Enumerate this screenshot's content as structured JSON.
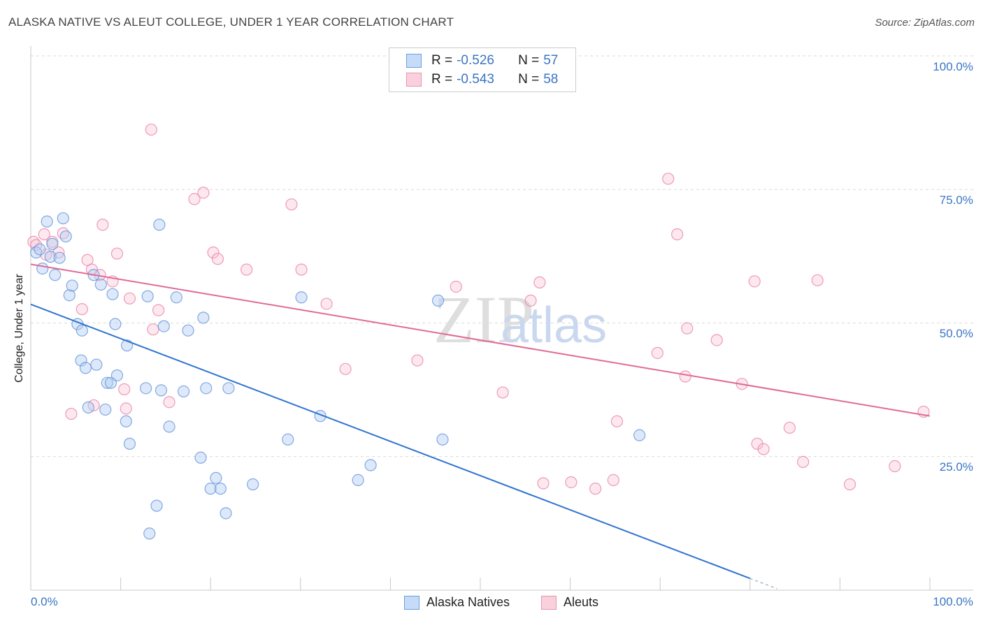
{
  "header": {
    "title": "ALASKA NATIVE VS ALEUT COLLEGE, UNDER 1 YEAR CORRELATION CHART",
    "source": "Source: ZipAtlas.com"
  },
  "watermark": {
    "zip": "ZIP",
    "atlas": "atlas"
  },
  "legend": {
    "rows": [
      {
        "r_label": "R = ",
        "r_value": "-0.526",
        "n_label": "N = ",
        "n_value": "57"
      },
      {
        "r_label": "R = ",
        "r_value": "-0.543",
        "n_label": "N = ",
        "n_value": "58"
      }
    ]
  },
  "chart_data": {
    "type": "scatter",
    "xlabel": "",
    "ylabel": "College, Under 1 year",
    "xlim": [
      0,
      100
    ],
    "ylim": [
      0,
      100
    ],
    "x_tick_labels": [
      "0.0%",
      "100.0%"
    ],
    "y_tick_labels": [
      "100.0%",
      "75.0%",
      "50.0%",
      "25.0%"
    ],
    "grid": true,
    "legend_position": "top-center",
    "colors": {
      "alaska": "#5b8fd8",
      "aleut": "#e87ca0",
      "alaska_line": "#2f74d0",
      "aleut_line": "#e06b96",
      "tick": "#3a75c4"
    },
    "series": [
      {
        "name": "Alaska Natives",
        "trend": {
          "x0": 0,
          "y0": 53.5,
          "x1": 80,
          "y1": 2.2,
          "dash_to_x": 83
        },
        "points": [
          [
            0.6,
            63.2
          ],
          [
            1.0,
            63.8
          ],
          [
            1.3,
            60.2
          ],
          [
            1.8,
            69.0
          ],
          [
            2.2,
            62.4
          ],
          [
            2.4,
            64.8
          ],
          [
            2.7,
            59.0
          ],
          [
            3.2,
            62.2
          ],
          [
            3.6,
            69.6
          ],
          [
            3.9,
            66.2
          ],
          [
            4.3,
            55.2
          ],
          [
            4.6,
            57.0
          ],
          [
            5.2,
            49.8
          ],
          [
            5.7,
            48.6
          ],
          [
            5.6,
            43.0
          ],
          [
            6.1,
            41.6
          ],
          [
            6.4,
            34.2
          ],
          [
            7.0,
            59.0
          ],
          [
            7.3,
            42.2
          ],
          [
            7.8,
            57.2
          ],
          [
            8.3,
            33.8
          ],
          [
            8.5,
            38.8
          ],
          [
            8.9,
            38.8
          ],
          [
            9.1,
            55.4
          ],
          [
            9.4,
            49.8
          ],
          [
            9.6,
            40.2
          ],
          [
            10.7,
            45.8
          ],
          [
            10.6,
            31.6
          ],
          [
            11.0,
            27.4
          ],
          [
            12.8,
            37.8
          ],
          [
            13.0,
            55.0
          ],
          [
            13.2,
            10.6
          ],
          [
            14.0,
            15.8
          ],
          [
            14.3,
            68.4
          ],
          [
            14.5,
            37.4
          ],
          [
            14.8,
            49.4
          ],
          [
            15.4,
            30.6
          ],
          [
            16.2,
            54.8
          ],
          [
            17.0,
            37.2
          ],
          [
            17.5,
            48.6
          ],
          [
            18.9,
            24.8
          ],
          [
            19.2,
            51.0
          ],
          [
            19.5,
            37.8
          ],
          [
            20.0,
            19.0
          ],
          [
            20.6,
            21.0
          ],
          [
            21.1,
            19.0
          ],
          [
            21.7,
            14.4
          ],
          [
            22.0,
            37.8
          ],
          [
            24.7,
            19.8
          ],
          [
            28.6,
            28.2
          ],
          [
            30.1,
            54.8
          ],
          [
            32.2,
            32.6
          ],
          [
            36.4,
            20.6
          ],
          [
            37.8,
            23.4
          ],
          [
            45.3,
            54.2
          ],
          [
            45.8,
            28.2
          ],
          [
            67.7,
            29.0
          ]
        ]
      },
      {
        "name": "Aleuts",
        "trend": {
          "x0": 0,
          "y0": 61.0,
          "x1": 100,
          "y1": 32.6
        },
        "points": [
          [
            0.3,
            65.2
          ],
          [
            0.6,
            64.6
          ],
          [
            1.5,
            66.6
          ],
          [
            1.7,
            62.8
          ],
          [
            2.4,
            65.2
          ],
          [
            3.1,
            63.2
          ],
          [
            3.6,
            66.8
          ],
          [
            4.5,
            33.0
          ],
          [
            5.7,
            52.6
          ],
          [
            6.3,
            61.8
          ],
          [
            6.8,
            60.0
          ],
          [
            7.0,
            34.6
          ],
          [
            7.7,
            59.0
          ],
          [
            8.0,
            68.4
          ],
          [
            9.1,
            57.8
          ],
          [
            9.6,
            63.0
          ],
          [
            10.4,
            37.6
          ],
          [
            10.6,
            34.0
          ],
          [
            11.0,
            54.6
          ],
          [
            13.4,
            86.2
          ],
          [
            13.6,
            48.8
          ],
          [
            14.2,
            52.4
          ],
          [
            15.4,
            35.2
          ],
          [
            18.2,
            73.2
          ],
          [
            19.2,
            74.4
          ],
          [
            20.3,
            63.2
          ],
          [
            20.8,
            62.0
          ],
          [
            24.0,
            60.0
          ],
          [
            29.0,
            72.2
          ],
          [
            30.1,
            60.0
          ],
          [
            32.9,
            53.6
          ],
          [
            35.0,
            41.4
          ],
          [
            43.0,
            43.0
          ],
          [
            47.3,
            56.8
          ],
          [
            52.5,
            37.0
          ],
          [
            55.6,
            54.2
          ],
          [
            56.6,
            57.6
          ],
          [
            57.0,
            20.0
          ],
          [
            60.1,
            20.2
          ],
          [
            62.8,
            19.0
          ],
          [
            64.8,
            20.6
          ],
          [
            65.2,
            31.6
          ],
          [
            69.7,
            44.4
          ],
          [
            70.9,
            77.0
          ],
          [
            71.9,
            66.6
          ],
          [
            72.8,
            40.0
          ],
          [
            73.0,
            49.0
          ],
          [
            76.3,
            46.8
          ],
          [
            79.1,
            38.6
          ],
          [
            80.5,
            57.8
          ],
          [
            80.8,
            27.4
          ],
          [
            81.5,
            26.4
          ],
          [
            84.4,
            30.4
          ],
          [
            85.9,
            24.0
          ],
          [
            87.5,
            58.0
          ],
          [
            91.1,
            19.8
          ],
          [
            96.1,
            23.2
          ],
          [
            99.3,
            33.4
          ]
        ]
      }
    ]
  }
}
